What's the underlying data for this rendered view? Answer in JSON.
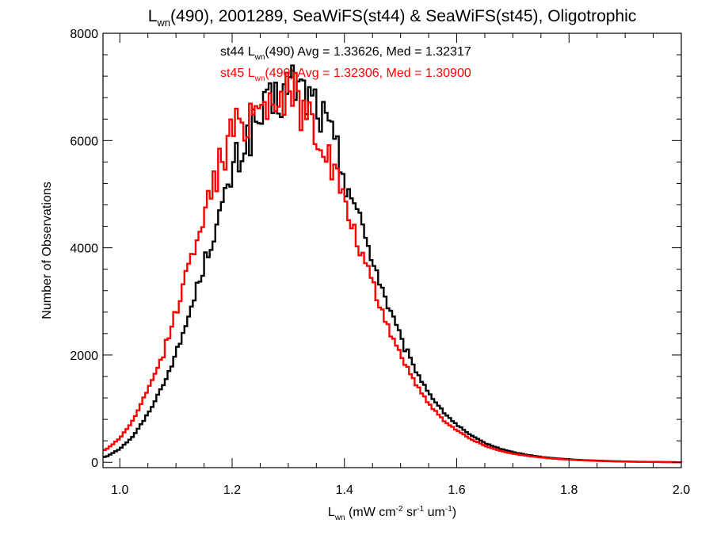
{
  "chart_data": {
    "type": "line",
    "title": {
      "main": "L",
      "sub": "wn",
      "rest": "(490), 2001289, SeaWiFS(st44) & SeaWiFS(st45), Oligotrophic"
    },
    "xlabel": {
      "main": "L",
      "sub": "wn",
      "units_a": " (mW cm",
      "sup1": "-2",
      "units_b": " sr",
      "sup2": "-1",
      "units_c": " um",
      "sup3": "-1",
      "units_d": ")"
    },
    "ylabel": "Number of Observations",
    "xlim": [
      0.97,
      2.0
    ],
    "ylim": [
      -100,
      8000
    ],
    "x_ticks": [
      "1.0",
      "1.2",
      "1.4",
      "1.6",
      "1.8",
      "2.0"
    ],
    "x_tick_values": [
      1.0,
      1.2,
      1.4,
      1.6,
      1.8,
      2.0
    ],
    "y_ticks": [
      "0",
      "2000",
      "4000",
      "6000",
      "8000"
    ],
    "y_tick_values": [
      0,
      2000,
      4000,
      6000,
      8000
    ],
    "grid": false,
    "legend_placement": "top-center",
    "annotations": [
      {
        "prefix": "st44 L",
        "sub": "wn",
        "rest": "(490) Avg = 1.33626, Med = 1.32317",
        "color": "#000000"
      },
      {
        "prefix": "st45 L",
        "sub": "wn",
        "rest": "(490) Avg = 1.32306, Med = 1.30900",
        "color": "#ff0000"
      }
    ],
    "series": [
      {
        "name": "st44",
        "color": "#000000",
        "step": "histogram",
        "x": [
          0.975,
          1.0,
          1.025,
          1.05,
          1.075,
          1.1,
          1.125,
          1.15,
          1.175,
          1.2,
          1.225,
          1.25,
          1.275,
          1.3,
          1.31,
          1.325,
          1.35,
          1.375,
          1.4,
          1.425,
          1.45,
          1.475,
          1.5,
          1.525,
          1.55,
          1.575,
          1.6,
          1.625,
          1.65,
          1.675,
          1.7,
          1.725,
          1.75,
          1.775,
          1.8,
          1.825,
          1.85,
          1.875,
          1.9,
          1.925,
          1.95,
          1.975,
          2.0
        ],
        "y": [
          100,
          250,
          500,
          900,
          1400,
          2000,
          2800,
          3700,
          4500,
          5400,
          6000,
          6400,
          6700,
          6900,
          7100,
          6900,
          6700,
          6100,
          5400,
          4600,
          3800,
          3000,
          2300,
          1750,
          1300,
          950,
          700,
          500,
          360,
          260,
          190,
          140,
          100,
          75,
          55,
          40,
          30,
          22,
          15,
          10,
          7,
          4,
          0
        ]
      },
      {
        "name": "st45",
        "color": "#ff0000",
        "step": "histogram",
        "x": [
          0.975,
          1.0,
          1.025,
          1.05,
          1.075,
          1.1,
          1.125,
          1.15,
          1.175,
          1.2,
          1.225,
          1.25,
          1.275,
          1.3,
          1.31,
          1.325,
          1.35,
          1.375,
          1.4,
          1.425,
          1.45,
          1.475,
          1.5,
          1.525,
          1.55,
          1.575,
          1.6,
          1.625,
          1.65,
          1.675,
          1.7,
          1.725,
          1.75,
          1.775,
          1.8,
          1.825,
          1.85,
          1.875,
          1.9,
          1.925,
          1.95,
          1.975,
          2.0
        ],
        "y": [
          230,
          450,
          800,
          1350,
          1950,
          2800,
          3750,
          4650,
          5450,
          6100,
          6450,
          6700,
          6800,
          6850,
          6900,
          6600,
          6250,
          5600,
          4850,
          4050,
          3300,
          2600,
          2000,
          1500,
          1100,
          800,
          600,
          430,
          310,
          220,
          160,
          120,
          90,
          65,
          48,
          35,
          26,
          18,
          12,
          8,
          5,
          3,
          0
        ]
      }
    ]
  }
}
